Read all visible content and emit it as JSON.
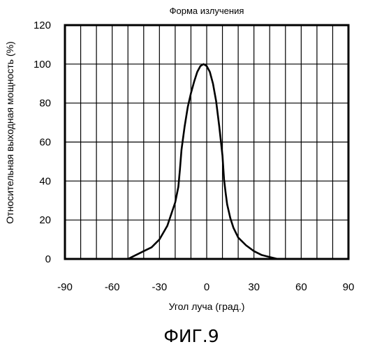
{
  "chart_data": {
    "type": "line",
    "title": "Форма излучения",
    "xlabel": "Угол луча (град.)",
    "ylabel": "Относительная выходная мощность (%)",
    "xlim": [
      -90,
      90
    ],
    "ylim": [
      0,
      120
    ],
    "xticks": [
      -90,
      -60,
      -30,
      0,
      30,
      60,
      90
    ],
    "yticks": [
      0,
      20,
      40,
      60,
      80,
      100,
      120
    ],
    "xtick_labels": [
      "-90",
      "-60",
      "-30",
      "0",
      "30",
      "60",
      "90"
    ],
    "ytick_labels": [
      "0",
      "20",
      "40",
      "60",
      "80",
      "100",
      "120"
    ],
    "grid": true,
    "grid_step_x": 10,
    "grid_step_y": 20,
    "line_color": "#000000",
    "series": [
      {
        "x": [
          -50,
          -45,
          -40,
          -35,
          -30,
          -25,
          -20,
          -18,
          -17,
          -16,
          -14,
          -12,
          -10,
          -8,
          -6,
          -4,
          -2,
          0,
          2,
          4,
          6,
          8,
          10,
          11,
          12,
          13,
          15,
          17,
          20,
          25,
          30,
          35,
          40,
          45
        ],
        "y": [
          0,
          2,
          4,
          6,
          10,
          17,
          29,
          37,
          46,
          56,
          68,
          78,
          85,
          91,
          96,
          99,
          100,
          99,
          96,
          90,
          81,
          68,
          53,
          41,
          34,
          28,
          21,
          16,
          11,
          7,
          4,
          2,
          1,
          0
        ]
      }
    ]
  },
  "figure_caption": "ФИГ.9"
}
